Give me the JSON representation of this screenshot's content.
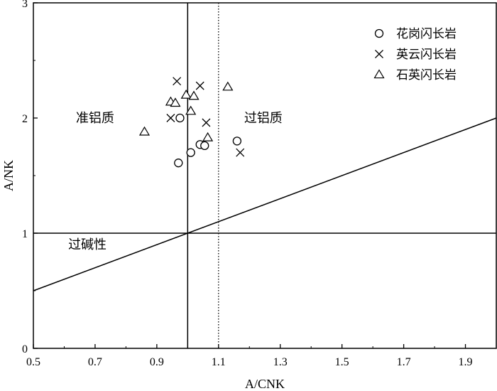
{
  "chart_data": {
    "type": "scatter",
    "xlabel": "A/CNK",
    "ylabel": "A/NK",
    "xlim": [
      0.5,
      2.0
    ],
    "ylim": [
      0,
      3
    ],
    "xticks": [
      0.5,
      0.7,
      0.9,
      1.1,
      1.3,
      1.5,
      1.7,
      1.9
    ],
    "xtick_labels": [
      "0.5",
      "0.7",
      "0.9",
      "1.1",
      "1.3",
      "1.5",
      "1.7",
      "1.9"
    ],
    "yticks": [
      0,
      1,
      2,
      3
    ],
    "ytick_labels": [
      "0",
      "1",
      "2",
      "3"
    ],
    "grid": false,
    "legend_position": "top-right",
    "series": [
      {
        "name": "花岗闪长岩",
        "marker": "circle",
        "points": [
          [
            0.975,
            2.0
          ],
          [
            0.97,
            1.61
          ],
          [
            1.01,
            1.7
          ],
          [
            1.04,
            1.77
          ],
          [
            1.055,
            1.76
          ],
          [
            1.16,
            1.8
          ]
        ]
      },
      {
        "name": "英云闪长岩",
        "marker": "cross",
        "points": [
          [
            0.965,
            2.32
          ],
          [
            1.04,
            2.28
          ],
          [
            0.945,
            2.0
          ],
          [
            1.06,
            1.96
          ],
          [
            1.17,
            1.7
          ]
        ]
      },
      {
        "name": "石英闪长岩",
        "marker": "triangle",
        "points": [
          [
            0.86,
            1.88
          ],
          [
            0.945,
            2.14
          ],
          [
            0.96,
            2.13
          ],
          [
            0.995,
            2.2
          ],
          [
            1.02,
            2.19
          ],
          [
            1.01,
            2.06
          ],
          [
            1.13,
            2.27
          ],
          [
            1.065,
            1.83
          ]
        ]
      }
    ],
    "reference_lines": [
      {
        "kind": "horizontal",
        "y": 1,
        "style": "solid"
      },
      {
        "kind": "vertical",
        "x": 1.0,
        "style": "solid"
      },
      {
        "kind": "vertical",
        "x": 1.1,
        "style": "dotted"
      },
      {
        "kind": "line",
        "from": [
          0.5,
          0.5
        ],
        "to": [
          2.0,
          2.0
        ],
        "style": "solid"
      }
    ],
    "region_labels": [
      {
        "text": "准铝质",
        "x": 0.7,
        "y": 2.0
      },
      {
        "text": "过铝质",
        "x": 1.245,
        "y": 2.0
      },
      {
        "text": "过碱性",
        "x": 0.675,
        "y": 0.9
      }
    ]
  }
}
